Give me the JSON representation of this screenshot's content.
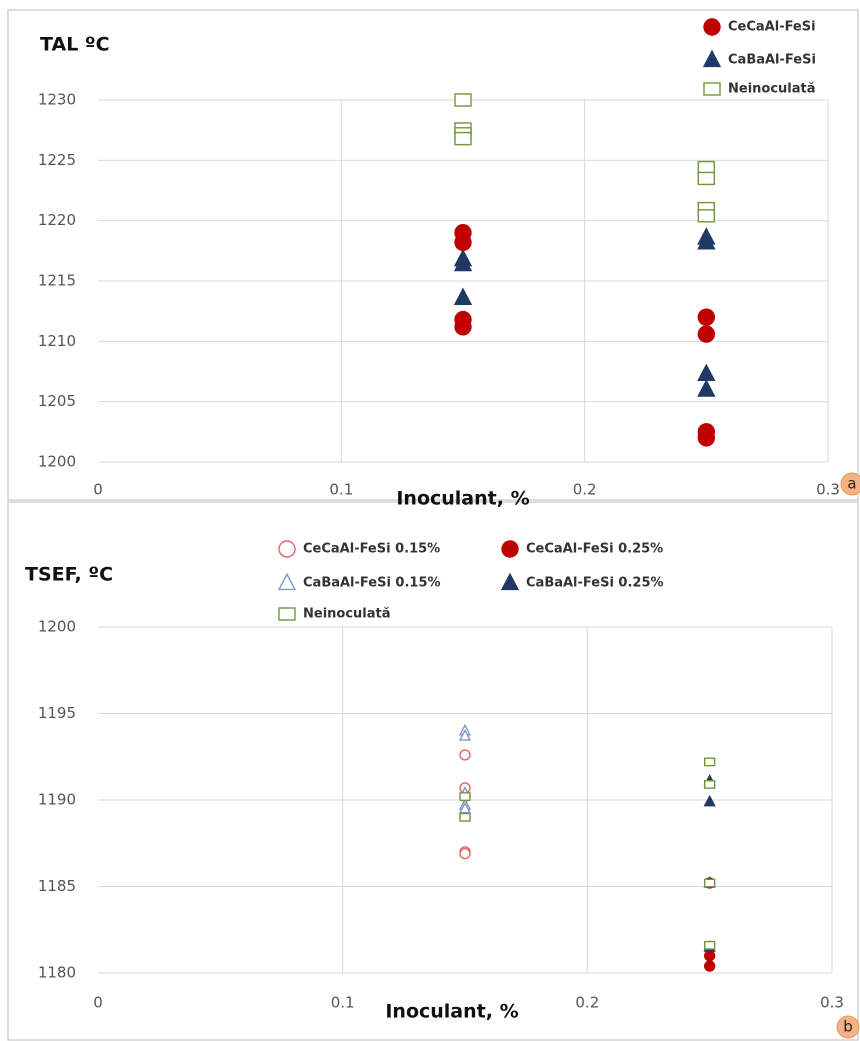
{
  "chart_data": [
    {
      "type": "scatter",
      "title": "TAL ºC",
      "x_label": "Inoculant, %",
      "annotation": "a",
      "xlim": [
        0,
        0.3
      ],
      "xticks": [
        0,
        0.1,
        0.2,
        0.3
      ],
      "ylim": [
        1200,
        1230
      ],
      "yticks": [
        1200,
        1205,
        1210,
        1215,
        1220,
        1225,
        1230
      ],
      "grid": true,
      "series": [
        {
          "name": "CeCaAl-FeSi",
          "color": "#c00000",
          "marker": "circle",
          "filled": true,
          "x": [
            0.15,
            0.15,
            0.15,
            0.15,
            0.25,
            0.25,
            0.25,
            0.25
          ],
          "values": [
            1219,
            1218.2,
            1211.8,
            1211.2,
            1212,
            1210.6,
            1202.5,
            1202
          ]
        },
        {
          "name": "CaBaAl-FeSi",
          "color": "#1f3864",
          "marker": "triangle",
          "filled": true,
          "x": [
            0.15,
            0.15,
            0.15,
            0.25,
            0.25,
            0.25,
            0.25
          ],
          "values": [
            1216.8,
            1216.4,
            1213.6,
            1218.6,
            1218.2,
            1207.3,
            1206
          ]
        },
        {
          "name": "Neinoculată",
          "color": "#70963a",
          "marker": "square",
          "filled": false,
          "x": [
            0.15,
            0.15,
            0.15,
            0.15,
            0.25,
            0.25,
            0.25,
            0.25
          ],
          "values": [
            1230,
            1227.6,
            1227.2,
            1226.8,
            1224.4,
            1223.5,
            1221,
            1220.4
          ]
        }
      ]
    },
    {
      "type": "scatter",
      "title": "TSEF, ºC",
      "x_label": "Inoculant, %",
      "annotation": "b",
      "xlim": [
        0,
        0.3
      ],
      "xticks": [
        0,
        0.1,
        0.2,
        0.3
      ],
      "ylim": [
        1180,
        1200
      ],
      "yticks": [
        1180,
        1185,
        1190,
        1195,
        1200
      ],
      "grid": true,
      "series": [
        {
          "name": "CeCaAl-FeSi 0.15%",
          "color": "#e06666",
          "marker": "circle",
          "filled": false,
          "x": [
            0.15,
            0.15,
            0.15,
            0.15,
            0.15
          ],
          "values": [
            1192.6,
            1190.7,
            1190.2,
            1187,
            1186.9
          ]
        },
        {
          "name": "CeCaAl-FeSi 0.25%",
          "color": "#c00000",
          "marker": "circle",
          "filled": true,
          "x": [
            0.25,
            0.25,
            0.25
          ],
          "values": [
            1185.2,
            1181,
            1180.4
          ]
        },
        {
          "name": "CaBaAl-FeSi 0.15%",
          "color": "#7f96c8",
          "marker": "triangle",
          "filled": false,
          "x": [
            0.15,
            0.15,
            0.15,
            0.15,
            0.15
          ],
          "values": [
            1194,
            1193.7,
            1190.4,
            1189.7,
            1189.5
          ]
        },
        {
          "name": "CaBaAl-FeSi 0.25%",
          "color": "#1f3864",
          "marker": "triangle",
          "filled": true,
          "x": [
            0.25,
            0.25,
            0.25,
            0.25
          ],
          "values": [
            1191.1,
            1189.9,
            1185.2,
            1181.5
          ]
        },
        {
          "name": "Neinoculată",
          "color": "#70963a",
          "marker": "square",
          "filled": false,
          "x": [
            0.15,
            0.15,
            0.25,
            0.25,
            0.25,
            0.25
          ],
          "values": [
            1190.2,
            1189,
            1192.2,
            1190.9,
            1185.2,
            1181.6
          ]
        }
      ]
    }
  ]
}
